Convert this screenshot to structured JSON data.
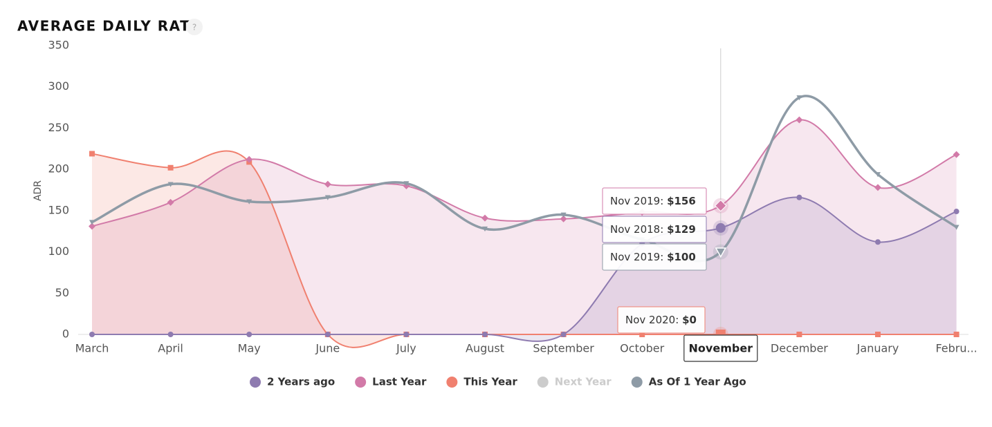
{
  "chart_data": {
    "type": "areaspline",
    "title": "AVERAGE DAILY RATE",
    "help": "?",
    "ylabel": "ADR",
    "categories": [
      "March",
      "April",
      "May",
      "June",
      "July",
      "August",
      "September",
      "October",
      "November",
      "December",
      "January",
      "Febru..."
    ],
    "highlight_category": 8,
    "ylim": [
      0,
      350
    ],
    "yticks": [
      0,
      50,
      100,
      150,
      200,
      250,
      300,
      350
    ],
    "series": [
      {
        "name": "2 Years ago",
        "color": "#8e7bb0",
        "marker": "circle",
        "fill": true,
        "values": [
          0,
          0,
          0,
          0,
          0,
          0,
          0,
          110,
          129,
          166,
          112,
          149
        ]
      },
      {
        "name": "Last Year",
        "color": "#d27aa8",
        "marker": "diamond",
        "fill": true,
        "values": [
          131,
          160,
          212,
          182,
          180,
          141,
          140,
          148,
          156,
          260,
          178,
          218
        ]
      },
      {
        "name": "This Year",
        "color": "#f0806f",
        "marker": "square",
        "fill": true,
        "values": [
          219,
          202,
          209,
          0,
          0,
          0,
          0,
          0,
          0,
          0,
          0,
          0
        ]
      },
      {
        "name": "Next Year",
        "color": "#cccccc",
        "marker": "circle",
        "fill": false,
        "hidden": true,
        "values": [
          null,
          null,
          null,
          null,
          null,
          null,
          null,
          null,
          null,
          null,
          null,
          null
        ]
      },
      {
        "name": "As Of 1 Year Ago",
        "color": "#8e9ba6",
        "marker": "triangle-down",
        "fill": false,
        "values": [
          136,
          182,
          161,
          166,
          183,
          128,
          145,
          115,
          100,
          287,
          194,
          130
        ]
      }
    ],
    "tooltips": [
      {
        "series": 1,
        "label": "Nov 2019:",
        "value_label": "$156"
      },
      {
        "series": 0,
        "label": "Nov 2018:",
        "value_label": "$129"
      },
      {
        "series": 4,
        "label": "Nov 2019:",
        "value_label": "$100"
      },
      {
        "series": 2,
        "label": "Nov 2020:",
        "value_label": "$0"
      }
    ]
  }
}
